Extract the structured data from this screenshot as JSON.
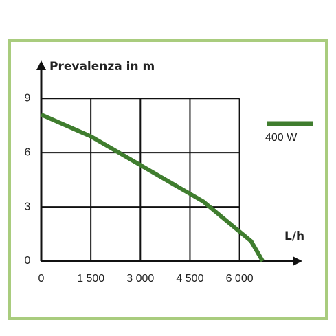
{
  "chart_data": {
    "type": "line",
    "y_label": "Prevalenza in m",
    "x_label": "L/h",
    "x": [
      0,
      1500,
      4900,
      6350,
      6700
    ],
    "series": [
      {
        "name": "400 W",
        "color": "#3f7d2e",
        "values": [
          8.1,
          6.9,
          3.3,
          1.1,
          0
        ]
      }
    ],
    "xlim": [
      0,
      7900
    ],
    "xticks": [
      0,
      {
        "value": 1500,
        "label": "1 500"
      },
      {
        "value": 3000,
        "label": "3 000"
      },
      {
        "value": 4500,
        "label": "4 500"
      },
      {
        "value": 6000,
        "label": "6 000"
      }
    ],
    "ylim": [
      0,
      11.1
    ],
    "yticks": [
      0,
      3,
      6,
      9
    ],
    "grid": true,
    "legend": "right"
  }
}
